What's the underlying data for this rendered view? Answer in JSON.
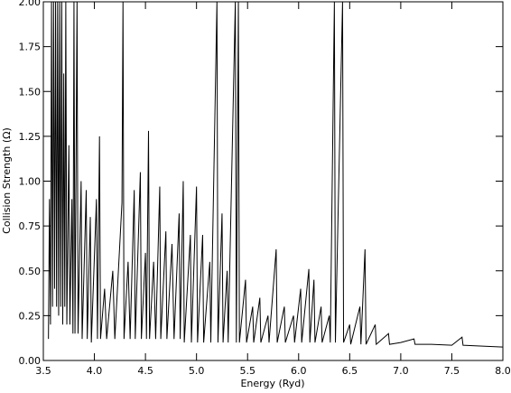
{
  "chart_data": {
    "type": "line",
    "x_label": "Energy (Ryd)",
    "y_label": "Collision Strength (Ω)",
    "color": "#000000",
    "xlim": [
      3.5,
      8.0
    ],
    "ylim": [
      0,
      2.0
    ],
    "xticks": [
      3.5,
      {
        "value": 4,
        "label": "4.0"
      },
      4.5,
      {
        "value": 5,
        "label": "5.0"
      },
      5.5,
      {
        "value": 6,
        "label": "6.0"
      },
      6.5,
      {
        "value": 7,
        "label": "7.0"
      },
      7.5,
      {
        "value": 8,
        "label": "8.0"
      }
    ],
    "yticks": [
      {
        "value": 0,
        "label": "0.00"
      },
      {
        "value": 0.25,
        "label": "0.25"
      },
      {
        "value": 0.5,
        "label": "0.50"
      },
      {
        "value": 0.75,
        "label": "0.75"
      },
      {
        "value": 1,
        "label": "1.00"
      },
      {
        "value": 1.25,
        "label": "1.25"
      },
      {
        "value": 1.5,
        "label": "1.50"
      },
      {
        "value": 1.75,
        "label": "1.75"
      },
      {
        "value": 2,
        "label": "2.00"
      }
    ],
    "x": [
      3.55,
      3.56,
      3.57,
      3.58,
      3.59,
      3.6,
      3.61,
      3.62,
      3.63,
      3.64,
      3.65,
      3.66,
      3.67,
      3.68,
      3.69,
      3.7,
      3.71,
      3.72,
      3.73,
      3.75,
      3.76,
      3.78,
      3.79,
      3.8,
      3.81,
      3.83,
      3.84,
      3.87,
      3.88,
      3.92,
      3.93,
      3.96,
      3.97,
      4.02,
      4.03,
      4.05,
      4.06,
      4.1,
      4.12,
      4.18,
      4.2,
      4.27,
      4.28,
      4.29,
      4.33,
      4.35,
      4.39,
      4.4,
      4.45,
      4.46,
      4.5,
      4.51,
      4.53,
      4.54,
      4.58,
      4.6,
      4.64,
      4.65,
      4.7,
      4.71,
      4.76,
      4.78,
      4.83,
      4.84,
      4.87,
      4.88,
      4.94,
      4.95,
      5.0,
      5.01,
      5.06,
      5.07,
      5.13,
      5.14,
      5.2,
      5.21,
      5.25,
      5.26,
      5.3,
      5.31,
      5.38,
      5.39,
      5.41,
      5.42,
      5.48,
      5.49,
      5.55,
      5.56,
      5.62,
      5.63,
      5.7,
      5.71,
      5.78,
      5.79,
      5.86,
      5.87,
      5.95,
      5.96,
      6.02,
      6.03,
      6.1,
      6.11,
      6.15,
      6.16,
      6.22,
      6.23,
      6.3,
      6.31,
      6.35,
      6.36,
      6.43,
      6.44,
      6.5,
      6.51,
      6.6,
      6.61,
      6.65,
      6.66,
      6.75,
      6.76,
      6.88,
      6.89,
      7.0,
      7.13,
      7.14,
      7.3,
      7.5,
      7.6,
      7.61,
      7.8,
      8.0
    ],
    "values": [
      0.12,
      0.9,
      0.2,
      2.0,
      0.3,
      2.0,
      0.4,
      2.0,
      0.3,
      2.0,
      0.25,
      2.0,
      0.3,
      2.0,
      0.2,
      1.6,
      0.3,
      2.0,
      0.2,
      1.2,
      0.2,
      0.9,
      0.15,
      2.0,
      0.15,
      2.0,
      0.15,
      1.0,
      0.12,
      0.95,
      0.12,
      0.8,
      0.1,
      0.9,
      0.12,
      1.25,
      0.12,
      0.4,
      0.12,
      0.5,
      0.12,
      0.88,
      2.0,
      0.12,
      0.55,
      0.12,
      0.95,
      0.12,
      1.05,
      0.12,
      0.6,
      0.12,
      1.28,
      0.12,
      0.55,
      0.12,
      0.97,
      0.12,
      0.72,
      0.12,
      0.65,
      0.12,
      0.82,
      0.12,
      1.0,
      0.1,
      0.7,
      0.1,
      0.97,
      0.1,
      0.7,
      0.1,
      0.55,
      0.1,
      2.0,
      0.1,
      0.82,
      0.1,
      0.5,
      0.1,
      2.0,
      0.1,
      2.0,
      0.1,
      0.45,
      0.1,
      0.3,
      0.1,
      0.35,
      0.1,
      0.25,
      0.1,
      0.62,
      0.1,
      0.3,
      0.1,
      0.25,
      0.1,
      0.4,
      0.1,
      0.51,
      0.1,
      0.45,
      0.1,
      0.3,
      0.1,
      0.25,
      0.1,
      2.0,
      0.1,
      2.0,
      0.1,
      0.2,
      0.09,
      0.3,
      0.09,
      0.62,
      0.09,
      0.2,
      0.09,
      0.15,
      0.09,
      0.1,
      0.12,
      0.09,
      0.09,
      0.085,
      0.13,
      0.085,
      0.08,
      0.075
    ]
  }
}
